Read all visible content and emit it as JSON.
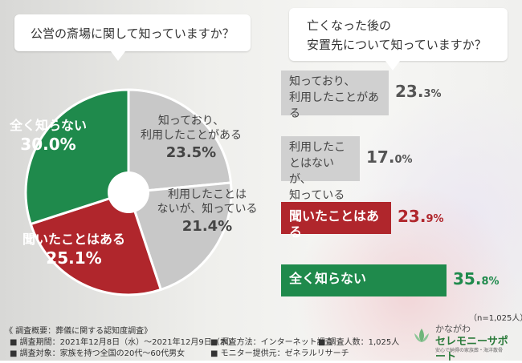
{
  "question1": "公営の斎場に関して知っていますか？",
  "question2": "亡くなった後の\n安置先について知っていますか？",
  "chart_data": [
    {
      "type": "pie",
      "categories": [
        "知っており、利用したことがある",
        "利用したことはないが、知っている",
        "聞いたことはある",
        "全く知らない"
      ],
      "values": [
        23.5,
        21.4,
        25.1,
        30.0
      ],
      "display_labels": [
        "知っており、\n利用したことがある",
        "利用したことは\nないが、知っている",
        "聞いたことはある",
        "全く知らない"
      ],
      "display_values": [
        "23.5%",
        "21.4%",
        "25.1%",
        "30.0%"
      ],
      "colors": [
        "#c8c8c8",
        "#c8c8c8",
        "#b0262c",
        "#1f8a4c"
      ],
      "label_colors": [
        "#444444",
        "#444444",
        "#ffffff",
        "#ffffff"
      ]
    },
    {
      "type": "bar",
      "orientation": "horizontal",
      "categories": [
        "知っており、\n利用したことがある",
        "利用したことはないが、\n知っている",
        "聞いたことはある",
        "全く知らない"
      ],
      "values": [
        23.3,
        17.0,
        23.9,
        35.8
      ],
      "value_labels": [
        {
          "int": "23.",
          "dec": "3%"
        },
        {
          "int": "17.",
          "dec": "0%"
        },
        {
          "int": "23.",
          "dec": "9%"
        },
        {
          "int": "35.",
          "dec": "8%"
        }
      ],
      "colors": [
        "#d0d0d0",
        "#d0d0d0",
        "#b0262c",
        "#1f8a4c"
      ],
      "label_colors": [
        "#444444",
        "#444444",
        "#ffffff",
        "#ffffff"
      ],
      "value_colors": [
        "#555555",
        "#555555",
        "#b0262c",
        "#1f8a4c"
      ],
      "n_label": "（n=1,025人）"
    }
  ],
  "survey": {
    "overview": "《 調査概要：葬儀に関する認知度調査》",
    "period": "■ 調査期間：2021年12月8日（水）〜2021年12月9日（木）",
    "method": "■ 調査方法：インターネット調査",
    "count": "■ 調査人数：1,025人",
    "target": "■ 調査対象：家族を持つ全国の20代〜60代男女",
    "provider": "■ モニター提供元：ゼネラルリサーチ"
  },
  "logo": {
    "name": "かながわ",
    "brand": "セレモニーサポート",
    "tagline": "安心で納得の家族葬・海洋散骨",
    "icon": "lotus-icon"
  }
}
